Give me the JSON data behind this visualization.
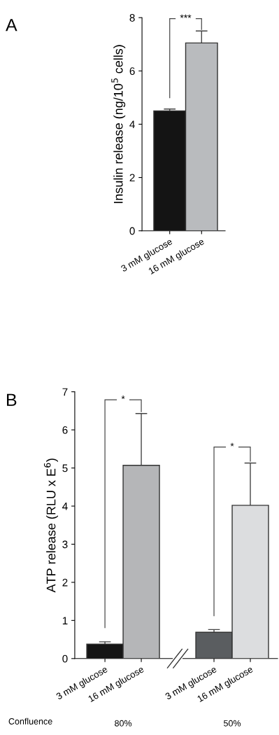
{
  "chart_data": [
    {
      "type": "bar",
      "title": "A",
      "ylabel": "Insulin release (ng/10$^{5}$ cells)",
      "categories": [
        "3 mM glucose",
        "16 mM glucose"
      ],
      "values": [
        4.5,
        7.05
      ],
      "errors": [
        0.07,
        0.45
      ],
      "colors": [
        "#141414",
        "#b9bbbe"
      ],
      "ylim": [
        0,
        8
      ],
      "yticks": [
        0,
        2,
        4,
        6,
        8
      ],
      "grid": false,
      "legend": false,
      "annotations": [
        "***"
      ]
    },
    {
      "type": "bar",
      "title": "B",
      "ylabel": "ATP release (RLU x E$^{6}$)",
      "categories": [
        "3 mM glucose",
        "16 mM glucose",
        null,
        "3 mM glucose",
        "16 mM glucose"
      ],
      "values": [
        0.38,
        5.07,
        null,
        0.69,
        4.02
      ],
      "errors": [
        0.06,
        1.36,
        null,
        0.07,
        1.11
      ],
      "colors": [
        "#151515",
        "#b5b6b8",
        "#ffffff",
        "#5a5d60",
        "#dcdddf"
      ],
      "ylim": [
        0,
        7
      ],
      "yticks": [
        0,
        1,
        2,
        3,
        4,
        5,
        6,
        7
      ],
      "grid": false,
      "legend": false,
      "annotations": [
        "*",
        "*",
        "Confluence",
        "80%",
        "50%"
      ]
    }
  ]
}
